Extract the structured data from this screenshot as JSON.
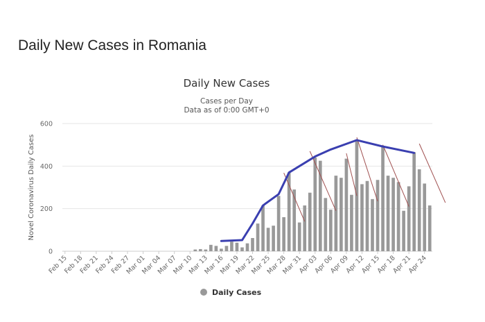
{
  "page": {
    "title": "Daily New Cases in Romania"
  },
  "chart_data": {
    "type": "bar",
    "title": "Daily New Cases",
    "subtitle_lines": [
      "Cases per Day",
      "Data as of 0:00 GMT+0"
    ],
    "xlabel": "",
    "ylabel": "Novel Coronavirus Daily Cases",
    "ylim": [
      0,
      600
    ],
    "yticks": [
      0,
      200,
      400,
      600
    ],
    "grid": true,
    "legend": {
      "position": "bottom",
      "entries": [
        "Daily Cases"
      ]
    },
    "colors": {
      "bars": "#999999",
      "trend": "#3a3fb0",
      "decline": "#a05050",
      "grid": "#e6e6e6"
    },
    "start_date": "2020-02-15",
    "xtick_labels": [
      "Feb 15",
      "Feb 18",
      "Feb 21",
      "Feb 24",
      "Feb 27",
      "Mar 01",
      "Mar 04",
      "Mar 07",
      "Mar 10",
      "Mar 13",
      "Mar 16",
      "Mar 19",
      "Mar 22",
      "Mar 25",
      "Mar 28",
      "Mar 31",
      "Apr 03",
      "Apr 06",
      "Apr 09",
      "Apr 12",
      "Apr 15",
      "Apr 18",
      "Apr 21",
      "Apr 24"
    ],
    "series": [
      {
        "name": "Daily Cases",
        "values": [
          0,
          0,
          0,
          0,
          0,
          0,
          0,
          0,
          0,
          0,
          0,
          0,
          0,
          0,
          0,
          0,
          0,
          0,
          0,
          0,
          0,
          0,
          0,
          0,
          0,
          8,
          10,
          8,
          30,
          25,
          12,
          25,
          45,
          40,
          18,
          37,
          62,
          130,
          215,
          110,
          120,
          260,
          160,
          370,
          290,
          135,
          215,
          275,
          440,
          425,
          250,
          195,
          355,
          345,
          435,
          265,
          520,
          315,
          330,
          245,
          335,
          490,
          355,
          345,
          325,
          190,
          305,
          465,
          385,
          318,
          215
        ]
      }
    ],
    "trend_points": [
      {
        "x": "2020-03-16",
        "y": 48
      },
      {
        "x": "2020-03-18",
        "y": 50
      },
      {
        "x": "2020-03-20",
        "y": 52
      },
      {
        "x": "2020-03-22",
        "y": 130
      },
      {
        "x": "2020-03-24",
        "y": 215
      },
      {
        "x": "2020-03-27",
        "y": 268
      },
      {
        "x": "2020-03-29",
        "y": 370
      },
      {
        "x": "2020-04-03",
        "y": 445
      },
      {
        "x": "2020-04-06",
        "y": 478
      },
      {
        "x": "2020-04-11",
        "y": 522
      },
      {
        "x": "2020-04-16",
        "y": 492
      },
      {
        "x": "2020-04-22",
        "y": 462
      }
    ],
    "decline_lines": [
      {
        "from": {
          "x": "2020-03-28",
          "y": 368
        },
        "to": {
          "x": "2020-04-01",
          "y": 140
        }
      },
      {
        "from": {
          "x": "2020-04-02",
          "y": 470
        },
        "to": {
          "x": "2020-04-07",
          "y": 190
        }
      },
      {
        "from": {
          "x": "2020-04-09",
          "y": 460
        },
        "to": {
          "x": "2020-04-11",
          "y": 260
        }
      },
      {
        "from": {
          "x": "2020-04-11",
          "y": 535
        },
        "to": {
          "x": "2020-04-15",
          "y": 235
        }
      },
      {
        "from": {
          "x": "2020-04-16",
          "y": 500
        },
        "to": {
          "x": "2020-04-21",
          "y": 210
        }
      },
      {
        "from": {
          "x": "2020-04-23",
          "y": 505
        },
        "to": {
          "x": "2020-04-28",
          "y": 228
        }
      }
    ]
  }
}
